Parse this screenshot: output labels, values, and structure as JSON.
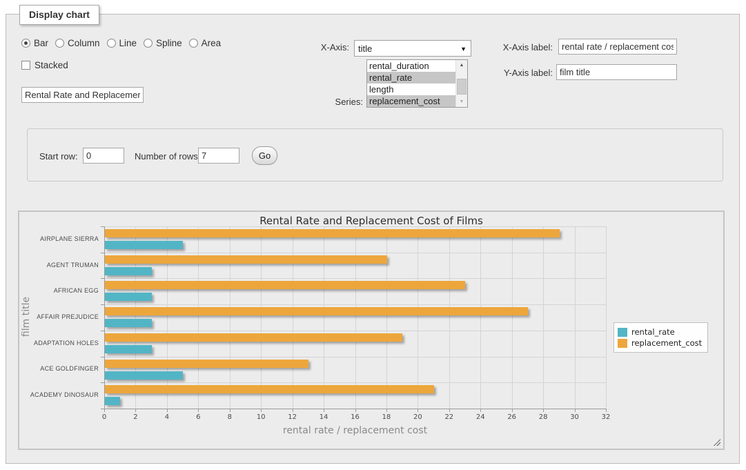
{
  "fieldset": {
    "legend": "Display chart"
  },
  "chart_type": {
    "options": [
      {
        "label": "Bar",
        "selected": true
      },
      {
        "label": "Column",
        "selected": false
      },
      {
        "label": "Line",
        "selected": false
      },
      {
        "label": "Spline",
        "selected": false
      },
      {
        "label": "Area",
        "selected": false
      }
    ]
  },
  "stacked": {
    "label": "Stacked",
    "checked": false
  },
  "title_input": {
    "value": "Rental Rate and Replacemer"
  },
  "x_axis_select": {
    "label": "X-Axis:",
    "selected_value": "title"
  },
  "series_list": {
    "label": "Series:",
    "options": [
      {
        "label": "rental_duration",
        "selected": false
      },
      {
        "label": "rental_rate",
        "selected": true
      },
      {
        "label": "length",
        "selected": false
      },
      {
        "label": "replacement_cost",
        "selected": true
      }
    ]
  },
  "x_axis_label_field": {
    "label": "X-Axis label:",
    "value": "rental rate / replacement cost"
  },
  "y_axis_label_field": {
    "label": "Y-Axis label:",
    "value": "film title"
  },
  "rows_panel": {
    "start_row_label": "Start row:",
    "start_row_value": "0",
    "num_rows_label": "Number of rows:",
    "num_rows_value": "7",
    "go_label": "Go"
  },
  "chart_data": {
    "type": "bar",
    "orientation": "horizontal",
    "title": "Rental Rate and Replacement Cost of Films",
    "categories": [
      "AIRPLANE SIERRA",
      "AGENT TRUMAN",
      "AFRICAN EGG",
      "AFFAIR PREJUDICE",
      "ADAPTATION HOLES",
      "ACE GOLDFINGER",
      "ACADEMY DINOSAUR"
    ],
    "series": [
      {
        "name": "rental_rate",
        "color": "#52B5C5",
        "values": [
          4.99,
          2.99,
          2.99,
          2.99,
          2.99,
          4.99,
          0.99
        ]
      },
      {
        "name": "replacement_cost",
        "color": "#EDA63C",
        "values": [
          28.99,
          17.99,
          22.99,
          26.99,
          18.99,
          12.99,
          20.99
        ]
      }
    ],
    "xlabel": "rental rate / replacement cost",
    "ylabel": "film title",
    "xlim": [
      0,
      32
    ],
    "x_ticks": [
      0,
      2,
      4,
      6,
      8,
      10,
      12,
      14,
      16,
      18,
      20,
      22,
      24,
      26,
      28,
      30,
      32
    ],
    "grid": true,
    "legend_position": "right"
  }
}
